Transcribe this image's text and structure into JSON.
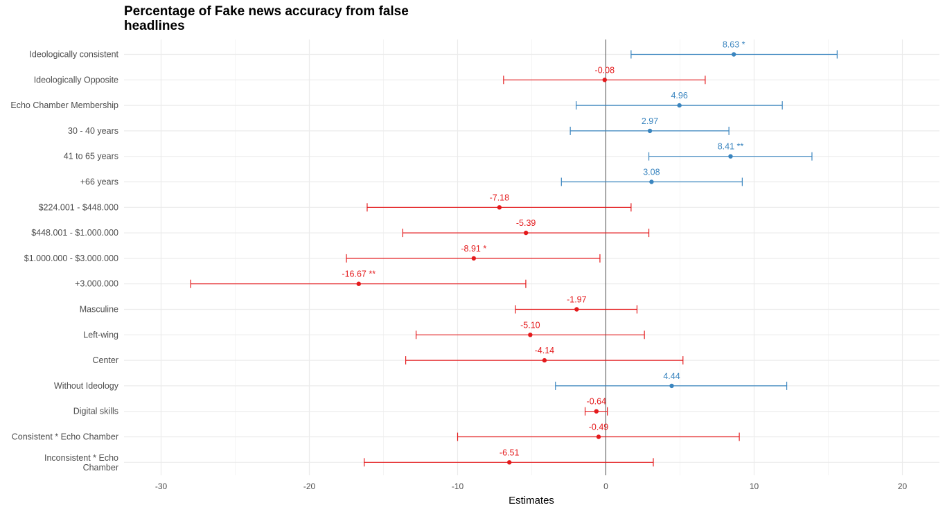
{
  "chart_data": {
    "type": "scatter",
    "title": "Percentage of Fake news accuracy from false\nheadlines",
    "xlabel": "Estimates",
    "ylabel": "",
    "xlim": [
      -30.5,
      22.5
    ],
    "xticks": [
      -30,
      -20,
      -10,
      0,
      10,
      20
    ],
    "xtick_labels": [
      "-30",
      "-20",
      "-10",
      "0",
      "10",
      "20"
    ],
    "grid": true,
    "reference_line": 0,
    "colors": {
      "positive": "#3a85bf",
      "negative": "#e41a1c",
      "grid_major": "#ebebeb",
      "grid_minor": "#f4f4f4",
      "zero_line": "#4d4d4d"
    },
    "categories": [
      "Ideologically consistent",
      "Ideologically Opposite",
      "Echo Chamber Membership",
      "30 - 40 years",
      "41 to 65 years",
      "+66 years",
      "$224.001 - $448.000",
      "$448.001 - $1.000.000",
      "$1.000.000 - $3.000.000",
      "+3.000.000",
      "Masculine",
      "Left-wing",
      "Center",
      "Without Ideology",
      "Digital skills",
      "Consistent * Echo Chamber",
      "Inconsistent * Echo\nChamber"
    ],
    "estimates": [
      8.63,
      -0.08,
      4.96,
      2.97,
      8.41,
      3.08,
      -7.18,
      -5.39,
      -8.91,
      -16.67,
      -1.97,
      -5.1,
      -4.14,
      4.44,
      -0.64,
      -0.49,
      -6.51
    ],
    "ci_low": [
      1.7,
      -6.9,
      -2.0,
      -2.4,
      2.9,
      -3.0,
      -16.1,
      -13.7,
      -17.5,
      -28.0,
      -6.1,
      -12.8,
      -13.5,
      -3.4,
      -1.4,
      -10.0,
      -16.3
    ],
    "ci_high": [
      15.6,
      6.7,
      11.9,
      8.3,
      13.9,
      9.2,
      1.7,
      2.9,
      -0.4,
      -5.4,
      2.1,
      2.6,
      5.2,
      12.2,
      0.1,
      9.0,
      3.2
    ],
    "labels": [
      "8.63 *",
      "-0.08",
      "4.96",
      "2.97",
      "8.41 **",
      "3.08",
      "-7.18",
      "-5.39",
      "-8.91 *",
      "-16.67 **",
      "-1.97",
      "-5.10",
      "-4.14",
      "4.44",
      "-0.64",
      "-0.49",
      "-6.51"
    ]
  }
}
